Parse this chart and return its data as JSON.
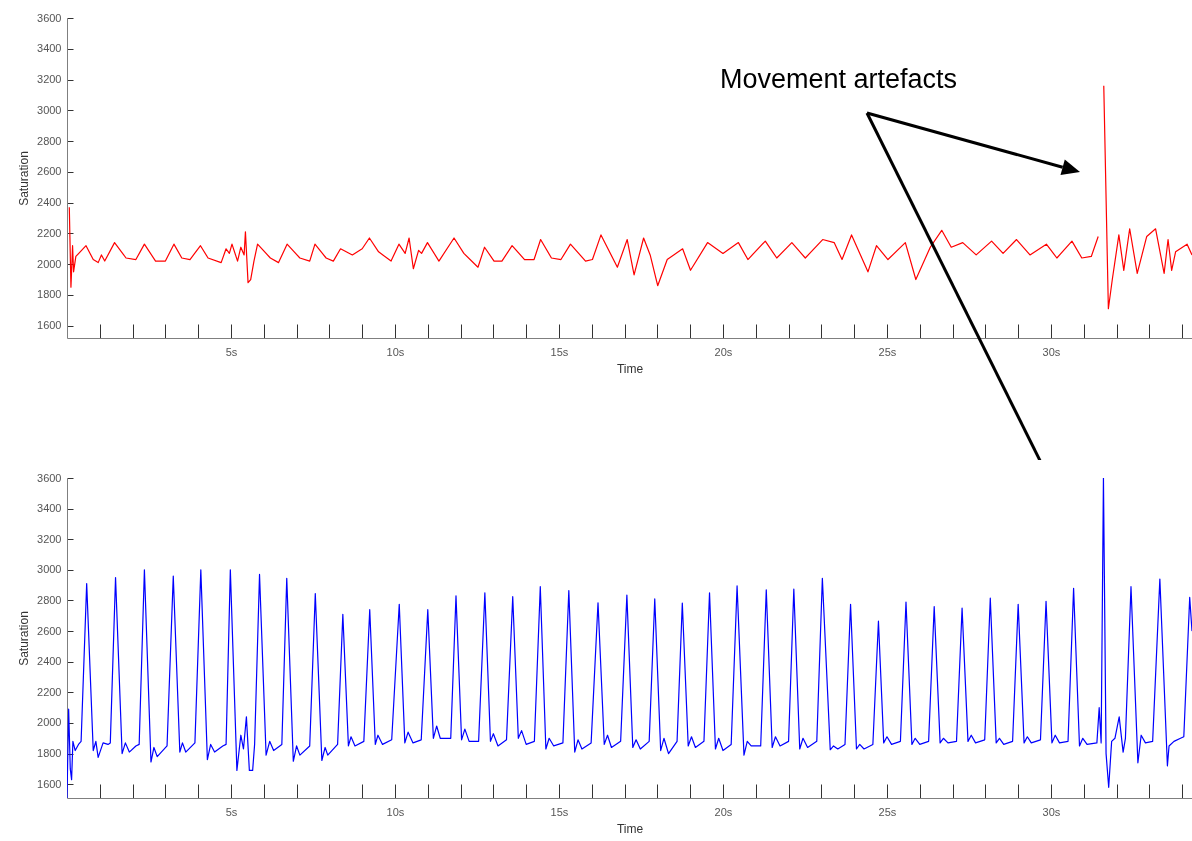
{
  "chart_data": [
    {
      "type": "line",
      "xlabel": "Time",
      "ylabel": "Saturation",
      "annotations": [
        "Movement artefacts"
      ],
      "xlim": [
        0,
        34.3
      ],
      "ylim": [
        1520,
        3600
      ],
      "xticks": [
        {
          "value": 1,
          "label": null
        },
        {
          "value": 2,
          "label": null
        },
        {
          "value": 3,
          "label": null
        },
        {
          "value": 4,
          "label": null
        },
        {
          "value": 5,
          "label": "5s"
        },
        {
          "value": 6,
          "label": null
        },
        {
          "value": 7,
          "label": null
        },
        {
          "value": 8,
          "label": null
        },
        {
          "value": 9,
          "label": null
        },
        {
          "value": 10,
          "label": "10s"
        },
        {
          "value": 11,
          "label": null
        },
        {
          "value": 12,
          "label": null
        },
        {
          "value": 13,
          "label": null
        },
        {
          "value": 14,
          "label": null
        },
        {
          "value": 15,
          "label": "15s"
        },
        {
          "value": 16,
          "label": null
        },
        {
          "value": 17,
          "label": null
        },
        {
          "value": 18,
          "label": null
        },
        {
          "value": 19,
          "label": null
        },
        {
          "value": 20,
          "label": "20s"
        },
        {
          "value": 21,
          "label": null
        },
        {
          "value": 22,
          "label": null
        },
        {
          "value": 23,
          "label": null
        },
        {
          "value": 24,
          "label": null
        },
        {
          "value": 25,
          "label": "25s"
        },
        {
          "value": 26,
          "label": null
        },
        {
          "value": 27,
          "label": null
        },
        {
          "value": 28,
          "label": null
        },
        {
          "value": 29,
          "label": null
        },
        {
          "value": 30,
          "label": "30s"
        },
        {
          "value": 31,
          "label": null
        },
        {
          "value": 32,
          "label": null
        },
        {
          "value": 33,
          "label": null
        },
        {
          "value": 34,
          "label": null
        }
      ],
      "yticks": [
        1600,
        1800,
        2000,
        2200,
        2400,
        2600,
        2800,
        3000,
        3200,
        3400,
        3600
      ],
      "x": [
        0.07,
        0.12,
        0.17,
        0.2,
        0.27,
        0.58,
        0.8,
        0.95,
        1.05,
        1.15,
        1.45,
        1.8,
        2.1,
        2.36,
        2.7,
        3.0,
        3.26,
        3.5,
        3.75,
        4.07,
        4.3,
        4.7,
        4.85,
        4.95,
        5.03,
        5.2,
        5.3,
        5.4,
        5.44,
        5.52,
        5.6,
        5.7,
        5.81,
        6.2,
        6.45,
        6.71,
        7.1,
        7.4,
        7.56,
        7.9,
        8.12,
        8.34,
        8.7,
        9.0,
        9.22,
        9.5,
        9.88,
        10.12,
        10.31,
        10.43,
        10.56,
        10.72,
        10.81,
        10.99,
        11.34,
        11.8,
        12.1,
        12.53,
        12.73,
        13.02,
        13.26,
        13.57,
        13.95,
        14.24,
        14.44,
        14.77,
        15.06,
        15.35,
        15.81,
        16.02,
        16.28,
        16.78,
        17.08,
        17.29,
        17.58,
        17.78,
        18.01,
        18.3,
        18.77,
        19.01,
        19.53,
        20.0,
        20.47,
        20.76,
        21.29,
        21.64,
        22.1,
        22.51,
        23.04,
        23.39,
        23.63,
        23.92,
        24.42,
        24.68,
        25.03,
        25.56,
        25.88,
        26.32,
        26.67,
        26.96,
        27.31,
        27.72,
        28.19,
        28.54,
        28.95,
        29.36,
        29.86,
        30.18,
        30.64,
        30.94,
        31.23,
        31.44,
        31.54,
        31.61,
        31.75,
        31.87,
        32.07,
        32.22,
        32.4,
        32.63,
        32.92,
        33.19,
        33.45,
        33.57,
        33.68,
        33.8,
        34.15,
        34.3
      ],
      "series": [
        {
          "color": "#ff0000",
          "values": [
            2370,
            1850,
            2120,
            1950,
            2050,
            2120,
            2030,
            2010,
            2060,
            2020,
            2140,
            2040,
            2030,
            2130,
            2020,
            2020,
            2130,
            2040,
            2030,
            2120,
            2040,
            2010,
            2100,
            2070,
            2130,
            2020,
            2110,
            2060,
            2210,
            1880,
            1900,
            2020,
            2130,
            2040,
            2010,
            2130,
            2040,
            2020,
            2130,
            2040,
            2020,
            2100,
            2060,
            2100,
            2170,
            2080,
            2020,
            2130,
            2070,
            2170,
            1970,
            2090,
            2070,
            2140,
            2020,
            2170,
            2070,
            1980,
            2110,
            2020,
            2020,
            2120,
            2030,
            2030,
            2160,
            2040,
            2030,
            2130,
            2020,
            2030,
            2190,
            1980,
            2160,
            1930,
            2170,
            2060,
            1860,
            2030,
            2100,
            1960,
            2140,
            2070,
            2140,
            2030,
            2150,
            2040,
            2140,
            2040,
            2160,
            2140,
            2030,
            2190,
            1950,
            2120,
            2030,
            2140,
            1900,
            2110,
            2220,
            2110,
            2140,
            2060,
            2150,
            2070,
            2160,
            2060,
            2130,
            2040,
            2150,
            2040,
            2050,
            2180,
            null,
            3160,
            1710,
            1900,
            2190,
            1960,
            2230,
            1940,
            2180,
            2230,
            1940,
            2160,
            1960,
            2080,
            2130,
            2060
          ]
        }
      ]
    },
    {
      "type": "line",
      "xlabel": "Time",
      "ylabel": "Saturation",
      "xlim": [
        0,
        34.3
      ],
      "ylim": [
        1510,
        3600
      ],
      "xticks": [
        {
          "value": 1,
          "label": null
        },
        {
          "value": 2,
          "label": null
        },
        {
          "value": 3,
          "label": null
        },
        {
          "value": 4,
          "label": null
        },
        {
          "value": 5,
          "label": "5s"
        },
        {
          "value": 6,
          "label": null
        },
        {
          "value": 7,
          "label": null
        },
        {
          "value": 8,
          "label": null
        },
        {
          "value": 9,
          "label": null
        },
        {
          "value": 10,
          "label": "10s"
        },
        {
          "value": 11,
          "label": null
        },
        {
          "value": 12,
          "label": null
        },
        {
          "value": 13,
          "label": null
        },
        {
          "value": 14,
          "label": null
        },
        {
          "value": 15,
          "label": "15s"
        },
        {
          "value": 16,
          "label": null
        },
        {
          "value": 17,
          "label": null
        },
        {
          "value": 18,
          "label": null
        },
        {
          "value": 19,
          "label": null
        },
        {
          "value": 20,
          "label": "20s"
        },
        {
          "value": 21,
          "label": null
        },
        {
          "value": 22,
          "label": null
        },
        {
          "value": 23,
          "label": null
        },
        {
          "value": 24,
          "label": null
        },
        {
          "value": 25,
          "label": "25s"
        },
        {
          "value": 26,
          "label": null
        },
        {
          "value": 27,
          "label": null
        },
        {
          "value": 28,
          "label": null
        },
        {
          "value": 29,
          "label": null
        },
        {
          "value": 30,
          "label": "30s"
        },
        {
          "value": 31,
          "label": null
        },
        {
          "value": 32,
          "label": null
        },
        {
          "value": 33,
          "label": null
        },
        {
          "value": 34,
          "label": null
        }
      ],
      "yticks": [
        1600,
        1800,
        2000,
        2200,
        2400,
        2600,
        2800,
        3000,
        3200,
        3400,
        3600
      ],
      "x": [
        0,
        0.05,
        0.1,
        0.14,
        0.18,
        0.25,
        0.35,
        0.43,
        0.6,
        0.8,
        0.88,
        0.95,
        1.1,
        1.25,
        1.32,
        1.48,
        1.68,
        1.78,
        1.9,
        2.1,
        2.2,
        2.36,
        2.56,
        2.65,
        2.75,
        3.05,
        3.24,
        3.44,
        3.52,
        3.62,
        3.9,
        4.08,
        4.28,
        4.38,
        4.5,
        4.75,
        4.85,
        4.98,
        5.18,
        5.3,
        5.38,
        5.47,
        5.56,
        5.66,
        5.72,
        5.87,
        6.07,
        6.18,
        6.3,
        6.55,
        6.7,
        6.9,
        7.0,
        7.1,
        7.4,
        7.57,
        7.77,
        7.87,
        7.95,
        8.25,
        8.41,
        8.58,
        8.66,
        8.78,
        9.05,
        9.23,
        9.4,
        9.48,
        9.62,
        9.9,
        10.13,
        10.3,
        10.4,
        10.55,
        10.8,
        11.0,
        11.17,
        11.27,
        11.38,
        11.7,
        11.86,
        12.03,
        12.13,
        12.26,
        12.55,
        12.74,
        12.91,
        13.0,
        13.14,
        13.4,
        13.59,
        13.76,
        13.86,
        14.0,
        14.25,
        14.43,
        14.6,
        14.7,
        14.84,
        15.12,
        15.3,
        15.48,
        15.58,
        15.7,
        15.98,
        16.19,
        16.38,
        16.48,
        16.6,
        16.88,
        17.07,
        17.25,
        17.35,
        17.48,
        17.75,
        17.92,
        18.1,
        18.2,
        18.34,
        18.6,
        18.76,
        18.94,
        19.04,
        19.16,
        19.42,
        19.59,
        19.77,
        19.87,
        20.0,
        20.25,
        20.43,
        20.64,
        20.74,
        20.86,
        21.15,
        21.32,
        21.5,
        21.6,
        21.74,
        22.0,
        22.16,
        22.34,
        22.44,
        22.58,
        22.86,
        23.03,
        23.27,
        23.37,
        23.5,
        23.72,
        23.89,
        24.07,
        24.17,
        24.3,
        24.57,
        24.74,
        24.9,
        25.0,
        25.14,
        25.41,
        25.58,
        25.76,
        25.86,
        26.0,
        26.27,
        26.44,
        26.62,
        26.72,
        26.86,
        27.12,
        27.29,
        27.47,
        27.57,
        27.7,
        27.98,
        28.15,
        28.33,
        28.43,
        28.56,
        28.83,
        29.0,
        29.18,
        29.28,
        29.4,
        29.68,
        29.85,
        30.03,
        30.13,
        30.26,
        30.52,
        30.69,
        30.87,
        30.97,
        31.1,
        31.4,
        31.47,
        31.53,
        31.6,
        31.68,
        31.76,
        31.85,
        31.95,
        32.08,
        32.2,
        32.27,
        32.44,
        32.65,
        32.75,
        32.88,
        33.1,
        33.32,
        33.55,
        33.6,
        33.75,
        33.95,
        34.05,
        34.23,
        34.3
      ],
      "series": [
        {
          "color": "#0000ff",
          "values": [
            1510,
            2090,
            1700,
            1630,
            1880,
            1820,
            1860,
            1880,
            2910,
            1820,
            1880,
            1775,
            1870,
            1860,
            1870,
            2950,
            1800,
            1870,
            1810,
            1850,
            1860,
            3000,
            1745,
            1840,
            1780,
            1850,
            2960,
            1810,
            1870,
            1810,
            1870,
            3000,
            1760,
            1860,
            1810,
            1850,
            1860,
            3000,
            1690,
            1920,
            1830,
            2040,
            1690,
            1690,
            1860,
            2970,
            1790,
            1880,
            1820,
            1860,
            2945,
            1750,
            1850,
            1790,
            1850,
            2845,
            1755,
            1840,
            1790,
            1860,
            2710,
            1850,
            1910,
            1850,
            1880,
            2740,
            1860,
            1920,
            1860,
            1890,
            2775,
            1870,
            1940,
            1870,
            1890,
            2740,
            1900,
            1980,
            1900,
            1900,
            2830,
            1890,
            1960,
            1880,
            1880,
            2850,
            1880,
            1930,
            1850,
            1890,
            2825,
            1900,
            1950,
            1860,
            1880,
            2890,
            1830,
            1900,
            1850,
            1870,
            2865,
            1810,
            1890,
            1830,
            1870,
            2785,
            1860,
            1920,
            1840,
            1880,
            2835,
            1840,
            1890,
            1830,
            1880,
            2810,
            1820,
            1900,
            1800,
            1880,
            2783,
            1850,
            1910,
            1840,
            1880,
            2850,
            1830,
            1900,
            1820,
            1860,
            2895,
            1790,
            1880,
            1850,
            1850,
            2870,
            1840,
            1910,
            1850,
            1880,
            2875,
            1830,
            1900,
            1840,
            1880,
            2945,
            1825,
            1850,
            1830,
            1860,
            2775,
            1830,
            1860,
            1830,
            1860,
            2665,
            1870,
            1910,
            1860,
            1880,
            2790,
            1860,
            1900,
            1860,
            1880,
            2760,
            1870,
            1900,
            1870,
            1880,
            2750,
            1880,
            1920,
            1870,
            1890,
            2815,
            1870,
            1900,
            1860,
            1880,
            2775,
            1870,
            1910,
            1870,
            1890,
            2795,
            1870,
            1920,
            1870,
            1880,
            2880,
            1850,
            1900,
            1860,
            1870,
            2100,
            1870,
            3600,
            1800,
            1580,
            1880,
            1900,
            2040,
            1810,
            1900,
            2890,
            1740,
            1920,
            1870,
            1880,
            2940,
            1720,
            1850,
            1880,
            1900,
            1910,
            2820,
            2600
          ]
        }
      ]
    }
  ]
}
